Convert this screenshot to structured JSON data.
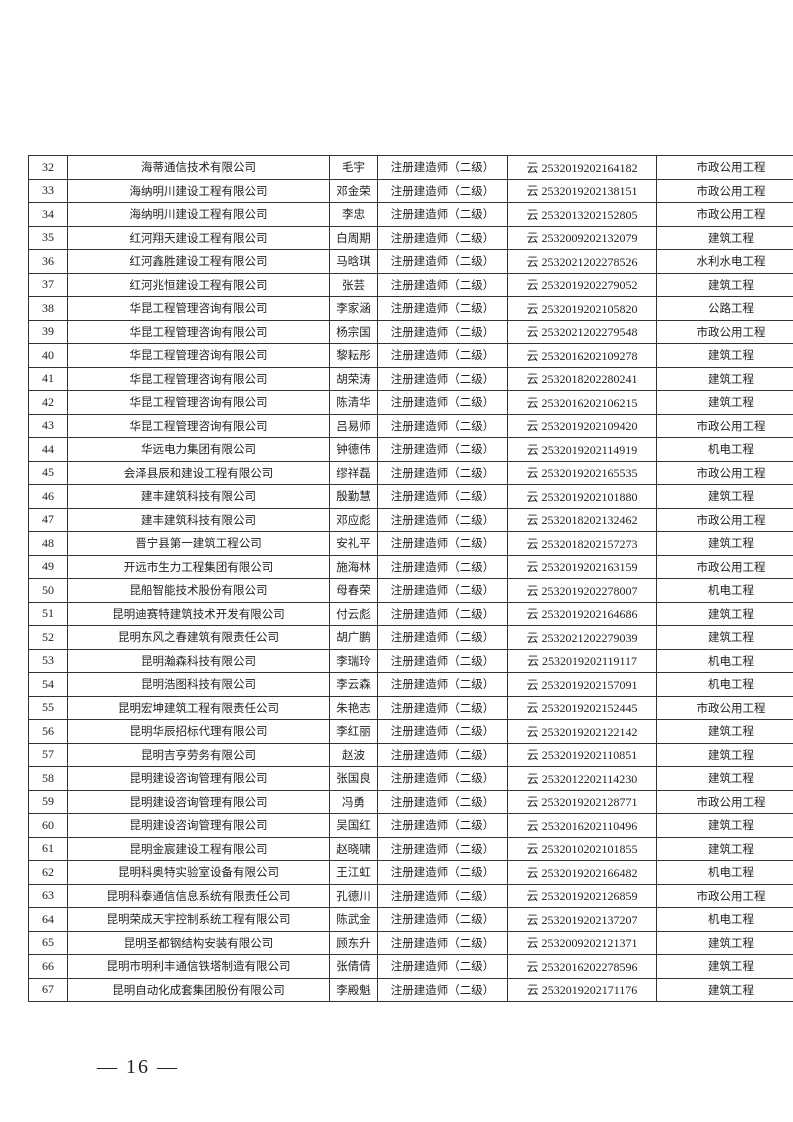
{
  "table": {
    "rows": [
      [
        "32",
        "海蒂通信技术有限公司",
        "毛宇",
        "注册建造师（二级）",
        "云 2532019202164182",
        "市政公用工程"
      ],
      [
        "33",
        "海纳明川建设工程有限公司",
        "邓金荣",
        "注册建造师（二级）",
        "云 2532019202138151",
        "市政公用工程"
      ],
      [
        "34",
        "海纳明川建设工程有限公司",
        "李忠",
        "注册建造师（二级）",
        "云 2532013202152805",
        "市政公用工程"
      ],
      [
        "35",
        "红河翔天建设工程有限公司",
        "白周期",
        "注册建造师（二级）",
        "云 2532009202132079",
        "建筑工程"
      ],
      [
        "36",
        "红河鑫胜建设工程有限公司",
        "马晗琪",
        "注册建造师（二级）",
        "云 2532021202278526",
        "水利水电工程"
      ],
      [
        "37",
        "红河兆恒建设工程有限公司",
        "张芸",
        "注册建造师（二级）",
        "云 2532019202279052",
        "建筑工程"
      ],
      [
        "38",
        "华昆工程管理咨询有限公司",
        "李家涵",
        "注册建造师（二级）",
        "云 2532019202105820",
        "公路工程"
      ],
      [
        "39",
        "华昆工程管理咨询有限公司",
        "杨宗国",
        "注册建造师（二级）",
        "云 2532021202279548",
        "市政公用工程"
      ],
      [
        "40",
        "华昆工程管理咨询有限公司",
        "黎耘彤",
        "注册建造师（二级）",
        "云 2532016202109278",
        "建筑工程"
      ],
      [
        "41",
        "华昆工程管理咨询有限公司",
        "胡荣涛",
        "注册建造师（二级）",
        "云 2532018202280241",
        "建筑工程"
      ],
      [
        "42",
        "华昆工程管理咨询有限公司",
        "陈清华",
        "注册建造师（二级）",
        "云 2532016202106215",
        "建筑工程"
      ],
      [
        "43",
        "华昆工程管理咨询有限公司",
        "吕易师",
        "注册建造师（二级）",
        "云 2532019202109420",
        "市政公用工程"
      ],
      [
        "44",
        "华远电力集团有限公司",
        "钟德伟",
        "注册建造师（二级）",
        "云 2532019202114919",
        "机电工程"
      ],
      [
        "45",
        "会泽县辰和建设工程有限公司",
        "缪祥磊",
        "注册建造师（二级）",
        "云 2532019202165535",
        "市政公用工程"
      ],
      [
        "46",
        "建丰建筑科技有限公司",
        "殷勤慧",
        "注册建造师（二级）",
        "云 2532019202101880",
        "建筑工程"
      ],
      [
        "47",
        "建丰建筑科技有限公司",
        "邓应彪",
        "注册建造师（二级）",
        "云 2532018202132462",
        "市政公用工程"
      ],
      [
        "48",
        "晋宁县第一建筑工程公司",
        "安礼平",
        "注册建造师（二级）",
        "云 2532018202157273",
        "建筑工程"
      ],
      [
        "49",
        "开远市生力工程集团有限公司",
        "施海林",
        "注册建造师（二级）",
        "云 2532019202163159",
        "市政公用工程"
      ],
      [
        "50",
        "昆船智能技术股份有限公司",
        "母春荣",
        "注册建造师（二级）",
        "云 2532019202278007",
        "机电工程"
      ],
      [
        "51",
        "昆明迪赛特建筑技术开发有限公司",
        "付云彪",
        "注册建造师（二级）",
        "云 2532019202164686",
        "建筑工程"
      ],
      [
        "52",
        "昆明东风之春建筑有限责任公司",
        "胡广鹏",
        "注册建造师（二级）",
        "云 2532021202279039",
        "建筑工程"
      ],
      [
        "53",
        "昆明瀚森科技有限公司",
        "李瑞玲",
        "注册建造师（二级）",
        "云 2532019202119117",
        "机电工程"
      ],
      [
        "54",
        "昆明浩图科技有限公司",
        "李云森",
        "注册建造师（二级）",
        "云 2532019202157091",
        "机电工程"
      ],
      [
        "55",
        "昆明宏坤建筑工程有限责任公司",
        "朱艳志",
        "注册建造师（二级）",
        "云 2532019202152445",
        "市政公用工程"
      ],
      [
        "56",
        "昆明华辰招标代理有限公司",
        "李红丽",
        "注册建造师（二级）",
        "云 2532019202122142",
        "建筑工程"
      ],
      [
        "57",
        "昆明吉亨劳务有限公司",
        "赵波",
        "注册建造师（二级）",
        "云 2532019202110851",
        "建筑工程"
      ],
      [
        "58",
        "昆明建设咨询管理有限公司",
        "张国良",
        "注册建造师（二级）",
        "云 2532012202114230",
        "建筑工程"
      ],
      [
        "59",
        "昆明建设咨询管理有限公司",
        "冯勇",
        "注册建造师（二级）",
        "云 2532019202128771",
        "市政公用工程"
      ],
      [
        "60",
        "昆明建设咨询管理有限公司",
        "吴国红",
        "注册建造师（二级）",
        "云 2532016202110496",
        "建筑工程"
      ],
      [
        "61",
        "昆明金宸建设工程有限公司",
        "赵晓啸",
        "注册建造师（二级）",
        "云 2532010202101855",
        "建筑工程"
      ],
      [
        "62",
        "昆明科奥特实验室设备有限公司",
        "王江虹",
        "注册建造师（二级）",
        "云 2532019202166482",
        "机电工程"
      ],
      [
        "63",
        "昆明科泰通信信息系统有限责任公司",
        "孔德川",
        "注册建造师（二级）",
        "云 2532019202126859",
        "市政公用工程"
      ],
      [
        "64",
        "昆明荣成天宇控制系统工程有限公司",
        "陈武金",
        "注册建造师（二级）",
        "云 2532019202137207",
        "机电工程"
      ],
      [
        "65",
        "昆明圣都钢结构安装有限公司",
        "顾东升",
        "注册建造师（二级）",
        "云 2532009202121371",
        "建筑工程"
      ],
      [
        "66",
        "昆明市明利丰通信铁塔制造有限公司",
        "张倩倩",
        "注册建造师（二级）",
        "云 2532016202278596",
        "建筑工程"
      ],
      [
        "67",
        "昆明自动化成套集团股份有限公司",
        "李殿魁",
        "注册建造师（二级）",
        "云 2532019202171176",
        "建筑工程"
      ]
    ]
  },
  "footer": {
    "page_number": "— 16 —"
  }
}
